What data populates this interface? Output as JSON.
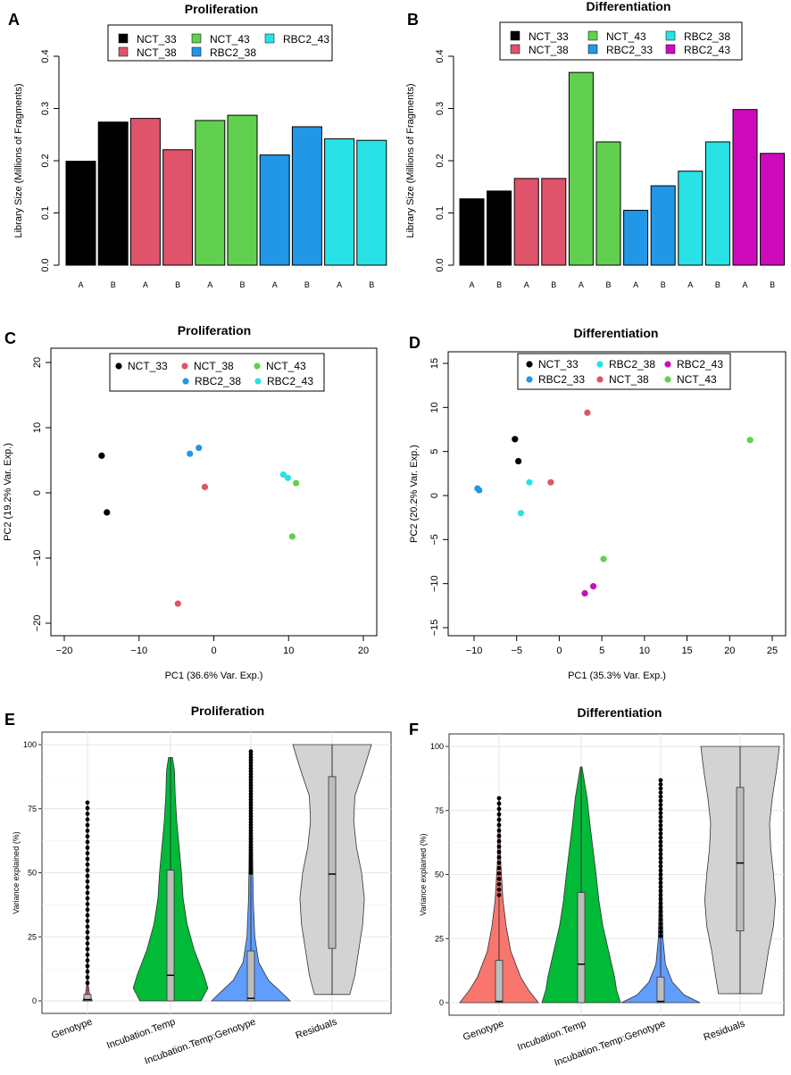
{
  "colors": {
    "NCT_33": "#000000",
    "NCT_38": "#DF536B",
    "NCT_43": "#61D04F",
    "RBC2_38": "#2297E6",
    "RBC2_43": "#28E2E5",
    "RBC2_33": "#2297E6",
    "RBC2_43_diff": "#CD0BBC",
    "violin_genotype": "#F8766D",
    "violin_temp": "#00BA38",
    "violin_interact": "#619CFF",
    "violin_resid": "#D3D3D3"
  },
  "chart_data": [
    {
      "panel": "A",
      "type": "bar",
      "title": "Proliferation",
      "ylabel": "Library Size (Millions of Fragments)",
      "ylim": [
        0,
        0.4
      ],
      "yticks": [
        "0.0",
        "0.1",
        "0.2",
        "0.3",
        "0.4"
      ],
      "categories": [
        "A",
        "B",
        "A",
        "B",
        "A",
        "B",
        "A",
        "B",
        "A",
        "B"
      ],
      "values": [
        0.199,
        0.274,
        0.281,
        0.221,
        0.277,
        0.287,
        0.211,
        0.265,
        0.242,
        0.239
      ],
      "groups": [
        "NCT_33",
        "NCT_33",
        "NCT_38",
        "NCT_38",
        "NCT_43",
        "NCT_43",
        "RBC2_38",
        "RBC2_38",
        "RBC2_43",
        "RBC2_43"
      ],
      "legend": [
        "NCT_33",
        "NCT_38",
        "NCT_43",
        "RBC2_38",
        "RBC2_43"
      ]
    },
    {
      "panel": "B",
      "type": "bar",
      "title": "Differentiation",
      "ylabel": "Library Size (Millions of Fragments)",
      "ylim": [
        0,
        0.4
      ],
      "yticks": [
        "0.0",
        "0.1",
        "0.2",
        "0.3",
        "0.4"
      ],
      "categories": [
        "A",
        "B",
        "A",
        "B",
        "A",
        "B",
        "A",
        "B",
        "A",
        "B",
        "A",
        "B"
      ],
      "values": [
        0.127,
        0.142,
        0.166,
        0.166,
        0.369,
        0.236,
        0.105,
        0.152,
        0.18,
        0.236,
        0.298,
        0.214
      ],
      "groups": [
        "NCT_33",
        "NCT_33",
        "NCT_38",
        "NCT_38",
        "NCT_43",
        "NCT_43",
        "RBC2_33",
        "RBC2_33",
        "RBC2_38",
        "RBC2_38",
        "RBC2_43",
        "RBC2_43"
      ],
      "legend": [
        "NCT_33",
        "NCT_38",
        "NCT_43",
        "RBC2_33",
        "RBC2_38",
        "RBC2_43"
      ]
    },
    {
      "panel": "C",
      "type": "scatter",
      "title": "Proliferation",
      "xlabel": "PC1 (36.6% Var. Exp.)",
      "ylabel": "PC2 (19.2% Var. Exp.)",
      "xlim": [
        -20,
        20
      ],
      "ylim": [
        -20,
        20
      ],
      "xticks": [
        "−20",
        "−10",
        "0",
        "10",
        "20"
      ],
      "yticks": [
        "−20",
        "−10",
        "0",
        "10",
        "20"
      ],
      "points": [
        {
          "group": "NCT_33",
          "x": -15.0,
          "y": 5.7
        },
        {
          "group": "NCT_33",
          "x": -14.3,
          "y": -3.0
        },
        {
          "group": "NCT_38",
          "x": -1.2,
          "y": 0.9
        },
        {
          "group": "NCT_38",
          "x": -4.8,
          "y": -17.0
        },
        {
          "group": "NCT_43",
          "x": 11.0,
          "y": 1.5
        },
        {
          "group": "NCT_43",
          "x": 10.5,
          "y": -6.7
        },
        {
          "group": "RBC2_38",
          "x": -2.0,
          "y": 6.9
        },
        {
          "group": "RBC2_38",
          "x": -3.2,
          "y": 6.0
        },
        {
          "group": "RBC2_43",
          "x": 9.3,
          "y": 2.8
        },
        {
          "group": "RBC2_43",
          "x": 9.9,
          "y": 2.3
        }
      ],
      "legend": [
        "NCT_33",
        "NCT_38",
        "NCT_43",
        "RBC2_38",
        "RBC2_43"
      ]
    },
    {
      "panel": "D",
      "type": "scatter",
      "title": "Differentiation",
      "xlabel": "PC1 (35.3% Var. Exp.)",
      "ylabel": "PC2 (20.2% Var. Exp.)",
      "xlim": [
        -10,
        25
      ],
      "ylim": [
        -15,
        15
      ],
      "xticks": [
        "−10",
        "−5",
        "0",
        "5",
        "10",
        "15",
        "20",
        "25"
      ],
      "yticks": [
        "−15",
        "−10",
        "−5",
        "0",
        "5",
        "10",
        "15"
      ],
      "points": [
        {
          "group": "NCT_33",
          "x": -5.2,
          "y": 6.4
        },
        {
          "group": "NCT_33",
          "x": -4.8,
          "y": 3.9
        },
        {
          "group": "NCT_38",
          "x": 3.3,
          "y": 9.4
        },
        {
          "group": "NCT_38",
          "x": -1.0,
          "y": 1.5
        },
        {
          "group": "NCT_43",
          "x": 22.4,
          "y": 6.3
        },
        {
          "group": "NCT_43",
          "x": 5.2,
          "y": -7.2
        },
        {
          "group": "RBC2_33",
          "x": -9.6,
          "y": 0.8
        },
        {
          "group": "RBC2_33",
          "x": -9.4,
          "y": 0.6
        },
        {
          "group": "RBC2_38",
          "x": -3.5,
          "y": 1.5
        },
        {
          "group": "RBC2_38",
          "x": -4.5,
          "y": -2.0
        },
        {
          "group": "RBC2_43",
          "x": 4.0,
          "y": -10.3
        },
        {
          "group": "RBC2_43",
          "x": 3.0,
          "y": -11.1
        }
      ],
      "legend": [
        "NCT_33",
        "RBC2_33",
        "RBC2_38",
        "NCT_38",
        "RBC2_43",
        "NCT_43"
      ]
    },
    {
      "panel": "E",
      "type": "violin",
      "title": "Proliferation",
      "ylabel": "Variance explained (%)",
      "ylim": [
        0,
        100
      ],
      "yticks": [
        "0",
        "25",
        "50",
        "75",
        "100"
      ],
      "categories": [
        "Genotype",
        "Incubation.Temp",
        "Incubation.Temp:Genotype",
        "Residuals"
      ],
      "box": [
        {
          "q1": 0,
          "median": 0.5,
          "q3": 2.5,
          "whisker_hi": 6
        },
        {
          "q1": 0,
          "median": 10,
          "q3": 51,
          "whisker_hi": 95
        },
        {
          "q1": 0,
          "median": 1,
          "q3": 19.5,
          "whisker_hi": 49
        },
        {
          "q1": 20.5,
          "median": 49.5,
          "q3": 87.5,
          "whisker_hi": 100,
          "whisker_lo": 2.5
        }
      ],
      "max": [
        78,
        95,
        98,
        100
      ],
      "outliers_top": [
        78,
        null,
        98,
        null
      ]
    },
    {
      "panel": "F",
      "type": "violin",
      "title": "Differentiation",
      "ylabel": "Variance explained (%)",
      "ylim": [
        0,
        100
      ],
      "yticks": [
        "0",
        "25",
        "50",
        "75",
        "100"
      ],
      "categories": [
        "Genotype",
        "Incubation.Temp",
        "Incubation.Temp:Genotype",
        "Residuals"
      ],
      "box": [
        {
          "q1": 0,
          "median": 0.5,
          "q3": 16.5,
          "whisker_hi": 41
        },
        {
          "q1": 0,
          "median": 15,
          "q3": 43,
          "whisker_hi": 92
        },
        {
          "q1": 0,
          "median": 0.5,
          "q3": 10,
          "whisker_hi": 25
        },
        {
          "q1": 28,
          "median": 54.5,
          "q3": 84,
          "whisker_hi": 100,
          "whisker_lo": 3.5
        }
      ],
      "max": [
        80,
        92,
        87,
        100
      ],
      "outliers_top": [
        80,
        null,
        87,
        null
      ]
    }
  ],
  "panel_letters": [
    "A",
    "B",
    "C",
    "D",
    "E",
    "F"
  ]
}
